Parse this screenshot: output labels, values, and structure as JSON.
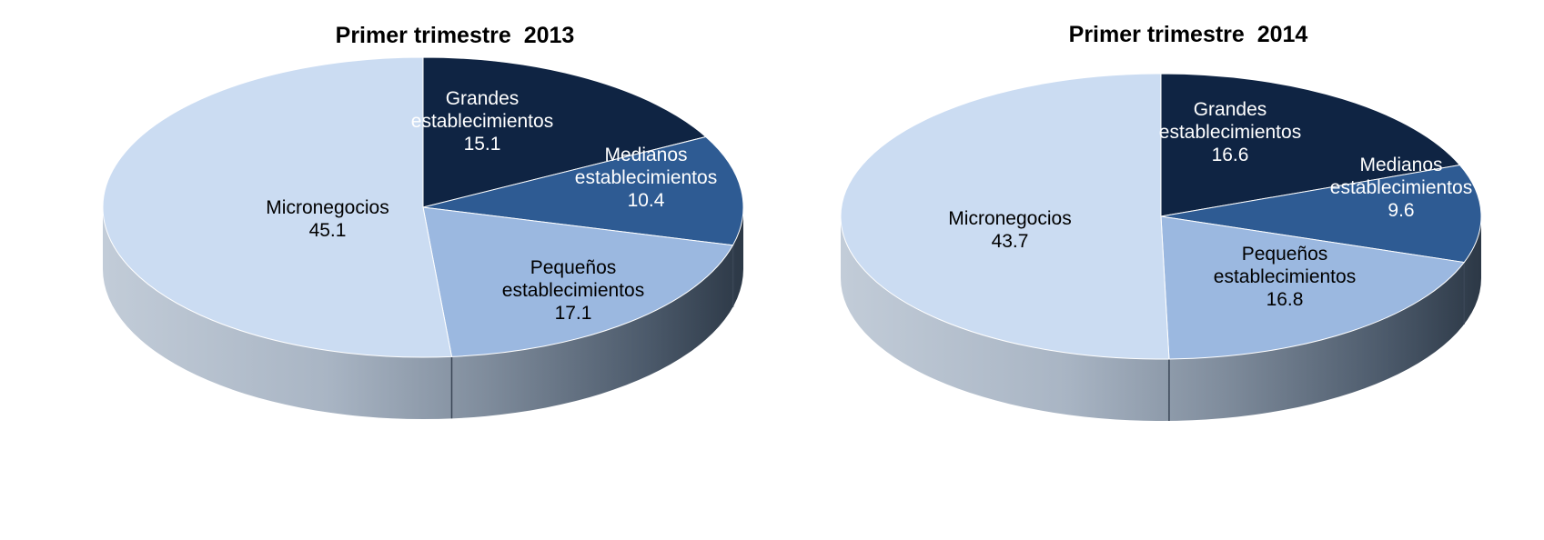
{
  "chart_data": [
    {
      "type": "pie",
      "title": "Primer trimestre  2013",
      "slices": [
        {
          "label_lines": [
            "Grandes",
            "establecimientos"
          ],
          "value": 15.1,
          "value_label": "15.1",
          "color": "#0F2443",
          "text_color": "#FFFFFF"
        },
        {
          "label_lines": [
            "Medianos",
            "establecimientos"
          ],
          "value": 10.4,
          "value_label": "10.4",
          "color": "#2E5B93",
          "text_color": "#FFFFFF"
        },
        {
          "label_lines": [
            "Pequeños",
            "establecimientos"
          ],
          "value": 17.1,
          "value_label": "17.1",
          "color": "#9BB8E0",
          "text_color": "#000000"
        },
        {
          "label_lines": [
            "Micronegocios"
          ],
          "value": 45.1,
          "value_label": "45.1",
          "color": "#CBDCF2",
          "text_color": "#000000"
        }
      ]
    },
    {
      "type": "pie",
      "title": "Primer trimestre  2014",
      "slices": [
        {
          "label_lines": [
            "Grandes",
            "establecimientos"
          ],
          "value": 16.6,
          "value_label": "16.6",
          "color": "#0F2443",
          "text_color": "#FFFFFF"
        },
        {
          "label_lines": [
            "Medianos",
            "establecimientos"
          ],
          "value": 9.6,
          "value_label": "9.6",
          "color": "#2E5B93",
          "text_color": "#FFFFFF"
        },
        {
          "label_lines": [
            "Pequeños",
            "establecimientos"
          ],
          "value": 16.8,
          "value_label": "16.8",
          "color": "#9BB8E0",
          "text_color": "#000000"
        },
        {
          "label_lines": [
            "Micronegocios"
          ],
          "value": 43.7,
          "value_label": "43.7",
          "color": "#CBDCF2",
          "text_color": "#000000"
        }
      ]
    }
  ]
}
